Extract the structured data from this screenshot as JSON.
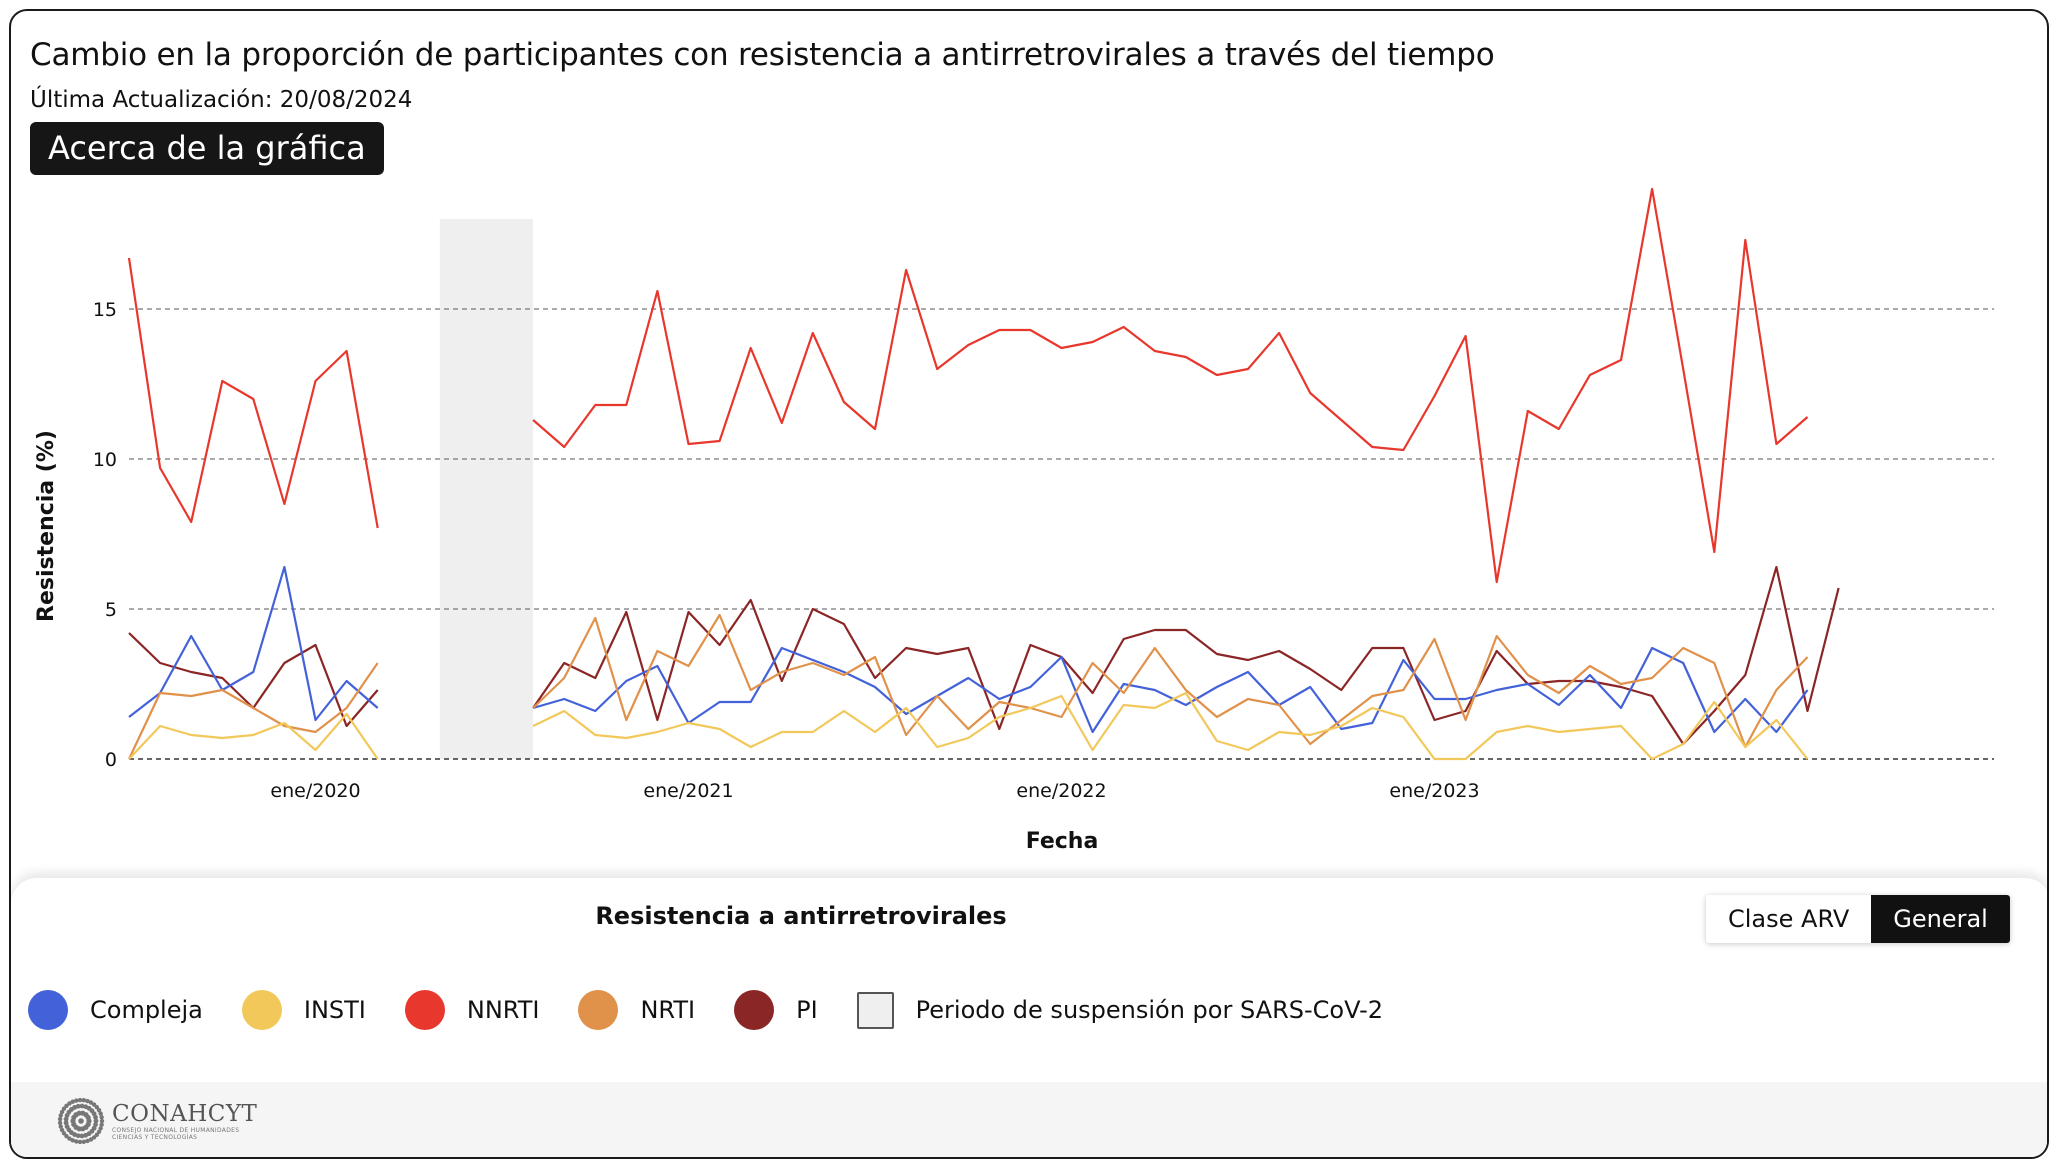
{
  "header": {
    "title": "Cambio en la proporción de participantes con resistencia a antirretrovirales a través del tiempo",
    "subtitle": "Última Actualización: 20/08/2024",
    "about_button": "Acerca de la gráfica"
  },
  "chart_data": {
    "type": "line",
    "ylabel": "Resistencia (%)",
    "xlabel": "Fecha",
    "ylim": [
      0,
      18
    ],
    "yticks": [
      0,
      5,
      10,
      15
    ],
    "grid": "horizontal dashed",
    "x_start": "2019-07",
    "x_end": "2024-07",
    "x_ticks": [
      {
        "date": "2020-01",
        "label": "ene/2020"
      },
      {
        "date": "2021-01",
        "label": "ene/2021"
      },
      {
        "date": "2022-01",
        "label": "ene/2022"
      },
      {
        "date": "2023-01",
        "label": "ene/2023"
      }
    ],
    "x": [
      "2019-07",
      "2019-08",
      "2019-09",
      "2019-10",
      "2019-11",
      "2019-12",
      "2020-01",
      "2020-02",
      "2020-03",
      "2020-04",
      "2020-08",
      "2020-09",
      "2020-10",
      "2020-11",
      "2020-12",
      "2021-01",
      "2021-02",
      "2021-03",
      "2021-04",
      "2021-05",
      "2021-06",
      "2021-07",
      "2021-08",
      "2021-09",
      "2021-10",
      "2021-11",
      "2021-12",
      "2022-01",
      "2022-02",
      "2022-03",
      "2022-04",
      "2022-05",
      "2022-06",
      "2022-07",
      "2022-08",
      "2022-09",
      "2022-10",
      "2022-11",
      "2022-12",
      "2023-01",
      "2023-02",
      "2023-03",
      "2023-04",
      "2023-05",
      "2023-06",
      "2023-07",
      "2023-08",
      "2023-09",
      "2023-10",
      "2023-11",
      "2023-12",
      "2024-01",
      "2024-02",
      "2024-03",
      "2024-04",
      "2024-05",
      "2024-06",
      "2024-07"
    ],
    "suspension_period": {
      "start": "2020-05",
      "end": "2020-08"
    },
    "series": [
      {
        "name": "NNRTI",
        "color": "#e8372c",
        "values": [
          16.7,
          9.7,
          7.9,
          12.6,
          12.0,
          8.5,
          12.6,
          13.6,
          7.7,
          null,
          11.3,
          10.4,
          11.8,
          11.8,
          15.6,
          10.5,
          10.6,
          13.7,
          11.2,
          14.2,
          11.9,
          11.0,
          16.3,
          13.0,
          13.8,
          14.3,
          14.3,
          13.7,
          13.9,
          14.4,
          13.6,
          13.4,
          12.8,
          13.0,
          14.2,
          12.2,
          11.3,
          10.4,
          10.3,
          12.1,
          14.1,
          5.9,
          11.6,
          11.0,
          12.8,
          13.3,
          19.0,
          13.0,
          6.9,
          17.3,
          10.5,
          11.4,
          null,
          null,
          null,
          null,
          null,
          null
        ]
      },
      {
        "name": "PI",
        "color": "#8b2626",
        "values": [
          4.2,
          3.2,
          2.9,
          2.7,
          1.7,
          3.2,
          3.8,
          1.1,
          2.3,
          null,
          1.7,
          3.2,
          2.7,
          4.9,
          1.3,
          4.9,
          3.8,
          5.3,
          2.6,
          5.0,
          4.5,
          2.7,
          3.7,
          3.5,
          3.7,
          1.0,
          3.8,
          3.4,
          2.2,
          4.0,
          4.3,
          4.3,
          3.5,
          3.3,
          3.6,
          3.0,
          2.3,
          3.7,
          3.7,
          1.3,
          1.6,
          3.6,
          2.5,
          2.6,
          2.6,
          2.4,
          2.1,
          0.5,
          1.6,
          2.8,
          6.4,
          1.6,
          5.7,
          null,
          null,
          null,
          null,
          null
        ]
      },
      {
        "name": "Compleja",
        "color": "#4362d9",
        "values": [
          1.4,
          2.2,
          4.1,
          2.3,
          2.9,
          6.4,
          1.3,
          2.6,
          1.7,
          null,
          1.7,
          2.0,
          1.6,
          2.6,
          3.1,
          1.2,
          1.9,
          1.9,
          3.7,
          3.3,
          2.9,
          2.4,
          1.5,
          2.1,
          2.7,
          2.0,
          2.4,
          3.4,
          0.9,
          2.5,
          2.3,
          1.8,
          2.4,
          2.9,
          1.8,
          2.4,
          1.0,
          1.2,
          3.3,
          2.0,
          2.0,
          2.3,
          2.5,
          1.8,
          2.8,
          1.7,
          3.7,
          3.2,
          0.9,
          2.0,
          0.9,
          2.3,
          null,
          null,
          null,
          null,
          null,
          null
        ]
      },
      {
        "name": "NRTI",
        "color": "#e0914a",
        "values": [
          0.0,
          2.2,
          2.1,
          2.3,
          1.7,
          1.1,
          0.9,
          1.7,
          3.2,
          null,
          1.7,
          2.7,
          4.7,
          1.3,
          3.6,
          3.1,
          4.8,
          2.3,
          2.9,
          3.2,
          2.8,
          3.4,
          0.8,
          2.1,
          1.0,
          1.9,
          1.7,
          1.4,
          3.2,
          2.2,
          3.7,
          2.3,
          1.4,
          2.0,
          1.8,
          0.5,
          1.3,
          2.1,
          2.3,
          4.0,
          1.3,
          4.1,
          2.8,
          2.2,
          3.1,
          2.5,
          2.7,
          3.7,
          3.2,
          0.4,
          2.3,
          3.4,
          null,
          null,
          null,
          null,
          null,
          null
        ]
      },
      {
        "name": "INSTI",
        "color": "#f2c85b",
        "values": [
          0.0,
          1.1,
          0.8,
          0.7,
          0.8,
          1.2,
          0.3,
          1.5,
          0.0,
          null,
          1.1,
          1.6,
          0.8,
          0.7,
          0.9,
          1.2,
          1.0,
          0.4,
          0.9,
          0.9,
          1.6,
          0.9,
          1.7,
          0.4,
          0.7,
          1.4,
          1.7,
          2.1,
          0.3,
          1.8,
          1.7,
          2.2,
          0.6,
          0.3,
          0.9,
          0.8,
          1.1,
          1.7,
          1.4,
          0.0,
          0.0,
          0.9,
          1.1,
          0.9,
          1.0,
          1.1,
          0.0,
          0.5,
          1.9,
          0.4,
          1.3,
          0.0,
          null,
          null,
          null,
          null,
          null,
          null
        ]
      }
    ]
  },
  "legend_panel": {
    "title": "Resistencia a antirretrovirales",
    "toggle": {
      "options": [
        "Clase ARV",
        "General"
      ],
      "selected": "General"
    },
    "items": [
      {
        "label": "Compleja",
        "color": "#4362d9"
      },
      {
        "label": "INSTI",
        "color": "#f2c85b"
      },
      {
        "label": "NNRTI",
        "color": "#e8372c"
      },
      {
        "label": "NRTI",
        "color": "#e0914a"
      },
      {
        "label": "PI",
        "color": "#8b2626"
      }
    ],
    "suspension_label": "Periodo de suspensión por SARS-CoV-2"
  },
  "footer": {
    "logo_name": "CONAHCYT",
    "logo_subtitle_1": "CONSEJO NACIONAL DE HUMANIDADES",
    "logo_subtitle_2": "CIENCIAS Y TECNOLOGÍAS"
  }
}
